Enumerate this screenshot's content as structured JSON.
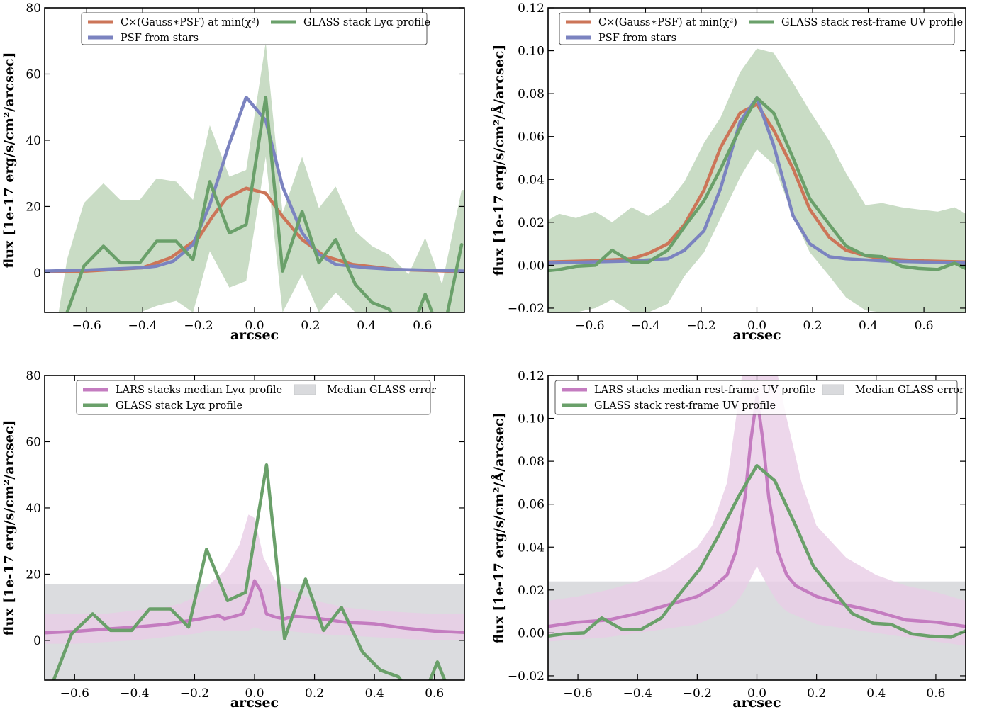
{
  "colors": {
    "model": "#cc7558",
    "psf": "#7b83c0",
    "glass": "#6aa06a",
    "glass_band": "#c9dcc5",
    "lars": "#c47cc0",
    "lars_band": "#e8cde6",
    "err_band": "#d9dadd"
  },
  "chart_data": [
    {
      "id": "lya-model",
      "type": "line",
      "xlabel": "arcsec",
      "ylabel": "flux [1e-17 erg/s/cm²/arcsec]",
      "xlim": [
        -0.75,
        0.75
      ],
      "ylim": [
        -12,
        80
      ],
      "xticks": [
        -0.6,
        -0.4,
        -0.2,
        0.0,
        0.2,
        0.4,
        0.6
      ],
      "xtick_labels": [
        "−0.6",
        "−0.4",
        "−0.2",
        "0.0",
        "0.2",
        "0.4",
        "0.6"
      ],
      "yticks": [
        0,
        20,
        40,
        60,
        80
      ],
      "ytick_labels": [
        "0",
        "20",
        "40",
        "60",
        "80"
      ],
      "legend": [
        "C×(Gauss∗PSF) at min(χ²)",
        "PSF from stars",
        "GLASS stack Lyα profile"
      ],
      "legend_position": "top",
      "bands": [
        {
          "color_key": "glass_band",
          "x": [
            -0.75,
            -0.7,
            -0.67,
            -0.61,
            -0.54,
            -0.48,
            -0.41,
            -0.35,
            -0.28,
            -0.22,
            -0.16,
            -0.09,
            -0.03,
            0.04,
            0.1,
            0.17,
            0.23,
            0.29,
            0.36,
            0.42,
            0.48,
            0.55,
            0.61,
            0.67,
            0.74,
            0.75
          ],
          "upper": [
            -12,
            -12,
            4,
            21,
            27,
            22,
            22,
            28.5,
            27.5,
            22,
            44.5,
            29,
            31,
            69.5,
            18,
            35,
            19.5,
            26,
            12.5,
            8,
            5.5,
            -0.5,
            10.5,
            -3.5,
            25,
            25
          ],
          "lower": [
            -12,
            -12,
            -12,
            -12,
            -12,
            -12,
            -12,
            -10,
            -8.5,
            -12,
            6.5,
            -4.5,
            -2.5,
            35,
            -12,
            -0.5,
            -12,
            -6,
            -12,
            -12,
            -12,
            -12,
            -12,
            -12,
            -12,
            -12
          ]
        }
      ],
      "series": [
        {
          "name": "C×(Gauss∗PSF) at min(χ²)",
          "color_key": "model",
          "x": [
            -0.75,
            -0.6,
            -0.4,
            -0.3,
            -0.2,
            -0.15,
            -0.1,
            -0.03,
            0.04,
            0.1,
            0.17,
            0.25,
            0.35,
            0.5,
            0.75
          ],
          "y": [
            0.3,
            0.5,
            1.5,
            4.5,
            10.5,
            17,
            22.5,
            25.5,
            24,
            17,
            10,
            5,
            2.5,
            1,
            0.3
          ]
        },
        {
          "name": "PSF from stars",
          "color_key": "psf",
          "x": [
            -0.75,
            -0.6,
            -0.4,
            -0.35,
            -0.29,
            -0.22,
            -0.16,
            -0.09,
            -0.03,
            0.04,
            0.1,
            0.17,
            0.23,
            0.29,
            0.4,
            0.5,
            0.75
          ],
          "y": [
            0.5,
            0.8,
            1.5,
            2,
            3.5,
            8.5,
            20.5,
            39,
            53,
            46,
            26,
            12,
            5.5,
            2.5,
            1.5,
            1,
            0.5
          ]
        },
        {
          "name": "GLASS stack Lyα profile",
          "color_key": "glass",
          "x": [
            -0.67,
            -0.61,
            -0.54,
            -0.48,
            -0.41,
            -0.35,
            -0.28,
            -0.22,
            -0.16,
            -0.09,
            -0.03,
            0.04,
            0.1,
            0.17,
            0.23,
            0.29,
            0.36,
            0.42,
            0.48,
            0.55,
            0.61,
            0.67,
            0.74
          ],
          "y": [
            -12,
            2,
            8,
            3,
            3,
            9.5,
            9.5,
            4,
            27.5,
            12,
            14.5,
            53,
            0.5,
            18.5,
            3,
            10,
            -3.5,
            -9,
            -11,
            -20,
            -6.5,
            -20,
            8.5
          ]
        }
      ]
    },
    {
      "id": "uv-model",
      "type": "line",
      "xlabel": "arcsec",
      "ylabel": "flux [1e-17 erg/s/cm²/Å/arcsec]",
      "xlim": [
        -0.75,
        0.75
      ],
      "ylim": [
        -0.022,
        0.12
      ],
      "xticks": [
        -0.6,
        -0.4,
        -0.2,
        0.0,
        0.2,
        0.4,
        0.6
      ],
      "xtick_labels": [
        "−0.6",
        "−0.4",
        "−0.2",
        "0.0",
        "0.2",
        "0.4",
        "0.6"
      ],
      "yticks": [
        -0.02,
        0.0,
        0.02,
        0.04,
        0.06,
        0.08,
        0.1,
        0.12
      ],
      "ytick_labels": [
        "−0.02",
        "0.00",
        "0.02",
        "0.04",
        "0.06",
        "0.08",
        "0.10",
        "0.12"
      ],
      "legend": [
        "C×(Gauss∗PSF) at min(χ²)",
        "PSF from stars",
        "GLASS stack rest-frame UV profile"
      ],
      "legend_position": "top",
      "bands": [
        {
          "color_key": "glass_band",
          "x": [
            -0.75,
            -0.71,
            -0.65,
            -0.58,
            -0.52,
            -0.45,
            -0.39,
            -0.32,
            -0.26,
            -0.19,
            -0.13,
            -0.06,
            0.0,
            0.06,
            0.13,
            0.19,
            0.26,
            0.32,
            0.39,
            0.45,
            0.52,
            0.58,
            0.65,
            0.71,
            0.75
          ],
          "upper": [
            0.021,
            0.024,
            0.022,
            0.025,
            0.02,
            0.027,
            0.023,
            0.029,
            0.039,
            0.057,
            0.069,
            0.09,
            0.101,
            0.099,
            0.085,
            0.072,
            0.058,
            0.043,
            0.028,
            0.029,
            0.027,
            0.026,
            0.025,
            0.027,
            0.024
          ],
          "lower": [
            -0.022,
            -0.022,
            -0.022,
            -0.02,
            -0.016,
            -0.022,
            -0.022,
            -0.018,
            -0.005,
            0.006,
            0.022,
            0.041,
            0.054,
            0.047,
            0.023,
            0.006,
            -0.005,
            -0.015,
            -0.021,
            -0.022,
            -0.022,
            -0.022,
            -0.022,
            -0.022,
            -0.022
          ]
        }
      ],
      "series": [
        {
          "name": "C×(Gauss∗PSF) at min(χ²)",
          "color_key": "model",
          "x": [
            -0.75,
            -0.6,
            -0.45,
            -0.39,
            -0.32,
            -0.26,
            -0.19,
            -0.13,
            -0.06,
            0.0,
            0.06,
            0.13,
            0.19,
            0.26,
            0.32,
            0.39,
            0.45,
            0.6,
            0.75
          ],
          "y": [
            0.0015,
            0.002,
            0.003,
            0.0055,
            0.01,
            0.019,
            0.035,
            0.055,
            0.071,
            0.075,
            0.063,
            0.045,
            0.026,
            0.013,
            0.007,
            0.0045,
            0.003,
            0.002,
            0.0015
          ]
        },
        {
          "name": "PSF from stars",
          "color_key": "psf",
          "x": [
            -0.75,
            -0.6,
            -0.45,
            -0.32,
            -0.26,
            -0.19,
            -0.13,
            -0.06,
            0.0,
            0.06,
            0.13,
            0.19,
            0.26,
            0.32,
            0.45,
            0.6,
            0.75
          ],
          "y": [
            0.001,
            0.0015,
            0.002,
            0.003,
            0.007,
            0.016,
            0.036,
            0.067,
            0.078,
            0.056,
            0.023,
            0.01,
            0.004,
            0.003,
            0.002,
            0.0015,
            0.001
          ]
        },
        {
          "name": "GLASS stack rest-frame UV profile",
          "color_key": "glass",
          "x": [
            -0.75,
            -0.71,
            -0.65,
            -0.58,
            -0.52,
            -0.45,
            -0.39,
            -0.32,
            -0.26,
            -0.19,
            -0.13,
            -0.06,
            0.0,
            0.06,
            0.13,
            0.19,
            0.26,
            0.32,
            0.39,
            0.45,
            0.52,
            0.58,
            0.65,
            0.71,
            0.75
          ],
          "y": [
            -0.0025,
            -0.002,
            -0.0005,
            0.0,
            0.007,
            0.0015,
            0.0015,
            0.007,
            0.018,
            0.03,
            0.045,
            0.064,
            0.078,
            0.071,
            0.05,
            0.031,
            0.019,
            0.009,
            0.0045,
            0.004,
            -0.0005,
            -0.0015,
            -0.002,
            0.001,
            -0.0015
          ]
        }
      ]
    },
    {
      "id": "lya-lars",
      "type": "line",
      "xlabel": "arcsec",
      "ylabel": "flux [1e-17 erg/s/cm²/arcsec]",
      "xlim": [
        -0.7,
        0.7
      ],
      "ylim": [
        -12,
        80
      ],
      "xticks": [
        -0.6,
        -0.4,
        -0.2,
        0.0,
        0.2,
        0.4,
        0.6
      ],
      "xtick_labels": [
        "−0.6",
        "−0.4",
        "−0.2",
        "0.0",
        "0.2",
        "0.4",
        "0.6"
      ],
      "yticks": [
        0,
        20,
        40,
        60,
        80
      ],
      "ytick_labels": [
        "0",
        "20",
        "40",
        "60",
        "80"
      ],
      "legend": [
        "LARS stacks median Lyα profile",
        "GLASS stack Lyα profile",
        "Median GLASS error"
      ],
      "legend_position": "top",
      "hband": {
        "color_key": "err_band",
        "range": [
          -12,
          17
        ]
      },
      "bands": [
        {
          "color_key": "lars_band",
          "x": [
            -0.7,
            -0.6,
            -0.5,
            -0.4,
            -0.3,
            -0.25,
            -0.2,
            -0.15,
            -0.1,
            -0.05,
            -0.02,
            0.0,
            0.03,
            0.07,
            0.1,
            0.15,
            0.2,
            0.3,
            0.4,
            0.5,
            0.6,
            0.7
          ],
          "upper": [
            8,
            8,
            8,
            9,
            10,
            11,
            13,
            17,
            21,
            29,
            38,
            37,
            25,
            18,
            16,
            14,
            12,
            10,
            9,
            8.5,
            8,
            8
          ],
          "lower": [
            -1,
            -1,
            -0.5,
            0,
            1,
            1.5,
            2,
            3,
            3,
            3,
            3,
            4,
            3,
            3,
            3,
            2.5,
            2,
            1.5,
            1,
            0.5,
            0,
            0
          ]
        }
      ],
      "series": [
        {
          "name": "LARS stacks median Lyα profile",
          "color_key": "lars",
          "x": [
            -0.7,
            -0.6,
            -0.5,
            -0.4,
            -0.3,
            -0.2,
            -0.15,
            -0.12,
            -0.1,
            -0.07,
            -0.04,
            -0.02,
            0.0,
            0.02,
            0.04,
            0.07,
            0.1,
            0.13,
            0.2,
            0.3,
            0.4,
            0.5,
            0.6,
            0.7
          ],
          "y": [
            2.3,
            2.7,
            3.4,
            4,
            4.8,
            6.2,
            7,
            7.5,
            6.5,
            7.2,
            8,
            12,
            18,
            15,
            8,
            7,
            6.5,
            7.3,
            6.8,
            5.5,
            5,
            3.7,
            2.8,
            2.4
          ]
        },
        {
          "name": "GLASS stack Lyα profile",
          "color_key": "glass",
          "x": [
            -0.67,
            -0.61,
            -0.54,
            -0.48,
            -0.41,
            -0.35,
            -0.28,
            -0.22,
            -0.16,
            -0.09,
            -0.03,
            0.04,
            0.1,
            0.17,
            0.23,
            0.29,
            0.36,
            0.42,
            0.48,
            0.55,
            0.61,
            0.67
          ],
          "y": [
            -12,
            2,
            8,
            3,
            3,
            9.5,
            9.5,
            4,
            27.5,
            12,
            14.5,
            53,
            0.5,
            18.5,
            3,
            10,
            -3.5,
            -9,
            -11,
            -20,
            -6.5,
            -20
          ]
        }
      ]
    },
    {
      "id": "uv-lars",
      "type": "line",
      "xlabel": "arcsec",
      "ylabel": "flux [1e-17 erg/s/cm²/Å/arcsec]",
      "xlim": [
        -0.7,
        0.7
      ],
      "ylim": [
        -0.022,
        0.12
      ],
      "xticks": [
        -0.6,
        -0.4,
        -0.2,
        0.0,
        0.2,
        0.4,
        0.6
      ],
      "xtick_labels": [
        "−0.6",
        "−0.4",
        "−0.2",
        "0.0",
        "0.2",
        "0.4",
        "0.6"
      ],
      "yticks": [
        -0.02,
        0.0,
        0.02,
        0.04,
        0.06,
        0.08,
        0.1,
        0.12
      ],
      "ytick_labels": [
        "−0.02",
        "0.00",
        "0.02",
        "0.04",
        "0.06",
        "0.08",
        "0.10",
        "0.12"
      ],
      "legend": [
        "LARS stacks median rest-frame UV profile",
        "GLASS stack rest-frame UV profile",
        "Median GLASS error"
      ],
      "legend_position": "top",
      "hband": {
        "color_key": "err_band",
        "range": [
          -0.022,
          0.024
        ]
      },
      "bands": [
        {
          "color_key": "lars_band",
          "x": [
            -0.7,
            -0.6,
            -0.5,
            -0.4,
            -0.3,
            -0.2,
            -0.15,
            -0.1,
            -0.07,
            -0.04,
            0.0,
            0.04,
            0.07,
            0.1,
            0.15,
            0.2,
            0.3,
            0.4,
            0.5,
            0.6,
            0.7
          ],
          "upper": [
            0.015,
            0.017,
            0.02,
            0.024,
            0.03,
            0.04,
            0.05,
            0.07,
            0.1,
            0.13,
            0.16,
            0.13,
            0.12,
            0.1,
            0.07,
            0.05,
            0.035,
            0.027,
            0.022,
            0.019,
            0.015
          ],
          "lower": [
            -0.004,
            -0.003,
            -0.002,
            0.0,
            0.002,
            0.004,
            0.007,
            0.01,
            0.014,
            0.02,
            0.031,
            0.021,
            0.014,
            0.01,
            0.007,
            0.004,
            0.002,
            0.0,
            -0.002,
            -0.004,
            -0.006
          ]
        }
      ],
      "series": [
        {
          "name": "LARS stacks median rest-frame UV profile",
          "color_key": "lars",
          "x": [
            -0.7,
            -0.6,
            -0.5,
            -0.4,
            -0.35,
            -0.3,
            -0.2,
            -0.15,
            -0.1,
            -0.07,
            -0.04,
            -0.02,
            0.0,
            0.02,
            0.04,
            0.07,
            0.1,
            0.13,
            0.2,
            0.3,
            0.4,
            0.5,
            0.6,
            0.7
          ],
          "y": [
            0.003,
            0.005,
            0.006,
            0.009,
            0.011,
            0.013,
            0.017,
            0.021,
            0.027,
            0.038,
            0.063,
            0.09,
            0.11,
            0.09,
            0.063,
            0.038,
            0.027,
            0.022,
            0.017,
            0.013,
            0.01,
            0.006,
            0.005,
            0.003
          ]
        },
        {
          "name": "GLASS stack rest-frame UV profile",
          "color_key": "glass",
          "x": [
            -0.7,
            -0.65,
            -0.58,
            -0.52,
            -0.45,
            -0.39,
            -0.32,
            -0.26,
            -0.19,
            -0.13,
            -0.06,
            0.0,
            0.06,
            0.13,
            0.19,
            0.26,
            0.32,
            0.39,
            0.45,
            0.52,
            0.58,
            0.65,
            0.7
          ],
          "y": [
            -0.0015,
            -0.0005,
            0.0,
            0.007,
            0.0015,
            0.0015,
            0.007,
            0.018,
            0.03,
            0.045,
            0.064,
            0.078,
            0.071,
            0.05,
            0.031,
            0.019,
            0.009,
            0.0045,
            0.004,
            -0.0005,
            -0.0015,
            -0.002,
            0.001
          ]
        }
      ]
    }
  ]
}
